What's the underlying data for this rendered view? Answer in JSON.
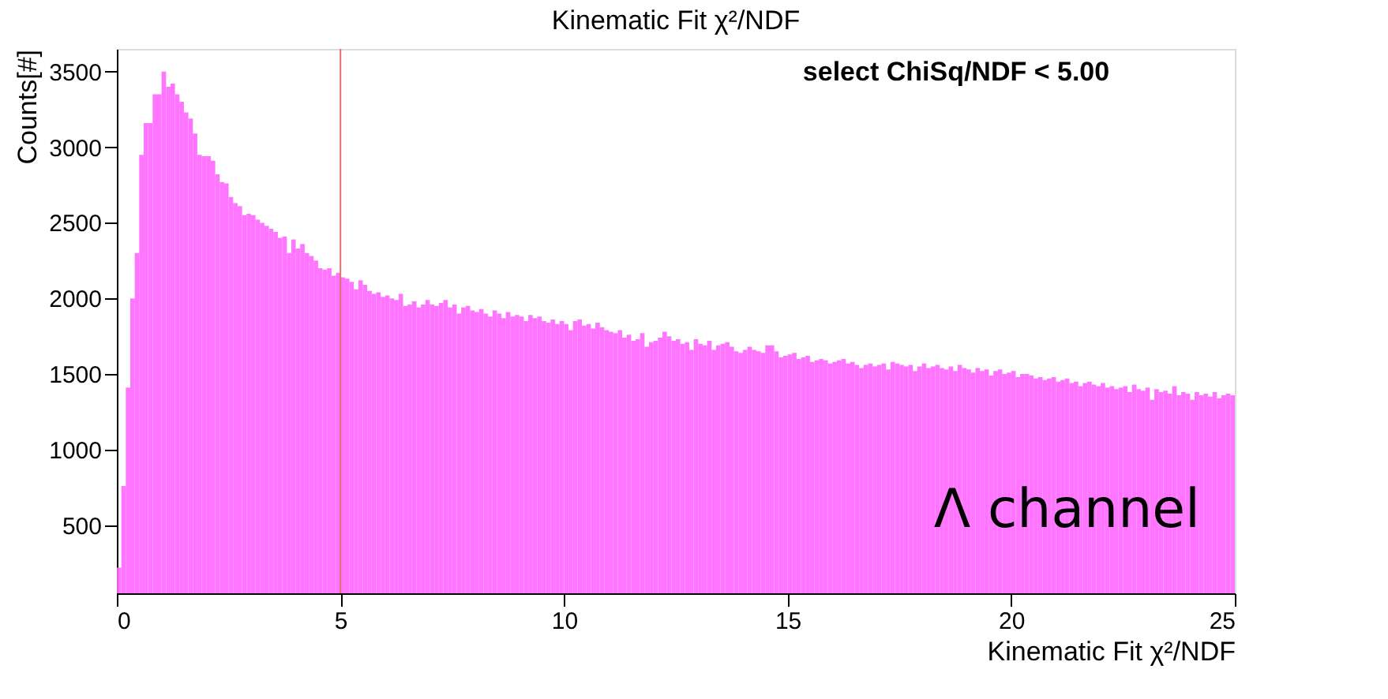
{
  "chart_data": {
    "type": "histogram",
    "title": "Kinematic Fit χ²/NDF",
    "xlabel": "Kinematic Fit χ²/NDF",
    "ylabel": "Counts[#]",
    "bins": [
      0,
      0.1,
      0.2,
      0.3,
      0.4,
      0.5,
      0.6,
      0.7,
      0.8,
      0.9,
      1,
      1.1,
      1.2,
      1.3,
      1.4,
      1.5,
      1.6,
      1.7,
      1.8,
      1.9,
      2,
      2.1,
      2.2,
      2.3,
      2.4,
      2.5,
      2.6,
      2.7,
      2.8,
      2.9,
      3,
      3.1,
      3.2,
      3.3,
      3.4,
      3.5,
      3.6,
      3.7,
      3.8,
      3.9,
      4,
      4.1,
      4.2,
      4.3,
      4.4,
      4.5,
      4.6,
      4.7,
      4.8,
      4.9,
      5,
      5.1,
      5.2,
      5.3,
      5.4,
      5.5,
      5.6,
      5.7,
      5.8,
      5.9,
      6,
      6.1,
      6.2,
      6.3,
      6.4,
      6.5,
      6.6,
      6.7,
      6.8,
      6.9,
      7,
      7.1,
      7.2,
      7.3,
      7.4,
      7.5,
      7.6,
      7.7,
      7.8,
      7.9,
      8,
      8.1,
      8.2,
      8.3,
      8.4,
      8.5,
      8.6,
      8.7,
      8.8,
      8.9,
      9,
      9.1,
      9.2,
      9.3,
      9.4,
      9.5,
      9.6,
      9.7,
      9.8,
      9.9,
      10,
      10.1,
      10.2,
      10.3,
      10.4,
      10.5,
      10.6,
      10.7,
      10.8,
      10.9,
      11,
      11.1,
      11.2,
      11.3,
      11.4,
      11.5,
      11.6,
      11.7,
      11.8,
      11.9,
      12,
      12.1,
      12.2,
      12.3,
      12.4,
      12.5,
      12.6,
      12.7,
      12.8,
      12.9,
      13,
      13.1,
      13.2,
      13.3,
      13.4,
      13.5,
      13.6,
      13.7,
      13.8,
      13.9,
      14,
      14.1,
      14.2,
      14.3,
      14.4,
      14.5,
      14.6,
      14.7,
      14.8,
      14.9,
      15,
      15.1,
      15.2,
      15.3,
      15.4,
      15.5,
      15.6,
      15.7,
      15.8,
      15.9,
      16,
      16.1,
      16.2,
      16.3,
      16.4,
      16.5,
      16.6,
      16.7,
      16.8,
      16.9,
      17,
      17.1,
      17.2,
      17.3,
      17.4,
      17.5,
      17.6,
      17.7,
      17.8,
      17.9,
      18,
      18.1,
      18.2,
      18.3,
      18.4,
      18.5,
      18.6,
      18.7,
      18.8,
      18.9,
      19,
      19.1,
      19.2,
      19.3,
      19.4,
      19.5,
      19.6,
      19.7,
      19.8,
      19.9,
      20,
      20.1,
      20.2,
      20.3,
      20.4,
      20.5,
      20.6,
      20.7,
      20.8,
      20.9,
      21,
      21.1,
      21.2,
      21.3,
      21.4,
      21.5,
      21.6,
      21.7,
      21.8,
      21.9,
      22,
      22.1,
      22.2,
      22.3,
      22.4,
      22.5,
      22.6,
      22.7,
      22.8,
      22.9,
      23,
      23.1,
      23.2,
      23.3,
      23.4,
      23.5,
      23.6,
      23.7,
      23.8,
      23.9,
      24,
      24.1,
      24.2,
      24.3,
      24.4,
      24.5,
      24.6,
      24.7,
      24.8,
      24.9,
      25
    ],
    "values": [
      220,
      760,
      1410,
      2000,
      2300,
      2950,
      3160,
      3160,
      3350,
      3350,
      3500,
      3400,
      3420,
      3350,
      3300,
      3230,
      3190,
      3090,
      2950,
      2940,
      2940,
      2910,
      2820,
      2770,
      2760,
      2670,
      2630,
      2610,
      2550,
      2560,
      2550,
      2520,
      2500,
      2480,
      2460,
      2440,
      2400,
      2410,
      2300,
      2390,
      2330,
      2360,
      2300,
      2280,
      2250,
      2200,
      2190,
      2200,
      2150,
      2170,
      2140,
      2130,
      2110,
      2060,
      2120,
      2090,
      2050,
      2030,
      2040,
      2010,
      2020,
      2000,
      1990,
      2030,
      1950,
      1960,
      1980,
      1940,
      1960,
      1990,
      1960,
      1950,
      1970,
      1990,
      1940,
      1960,
      1900,
      1940,
      1950,
      1920,
      1910,
      1930,
      1900,
      1880,
      1920,
      1900,
      1870,
      1910,
      1880,
      1890,
      1880,
      1850,
      1890,
      1870,
      1880,
      1850,
      1840,
      1860,
      1830,
      1850,
      1830,
      1790,
      1850,
      1860,
      1820,
      1830,
      1800,
      1840,
      1810,
      1790,
      1780,
      1770,
      1790,
      1740,
      1760,
      1720,
      1730,
      1770,
      1680,
      1710,
      1720,
      1740,
      1780,
      1750,
      1720,
      1730,
      1700,
      1710,
      1660,
      1730,
      1700,
      1690,
      1720,
      1660,
      1690,
      1700,
      1710,
      1680,
      1650,
      1640,
      1660,
      1680,
      1660,
      1650,
      1640,
      1690,
      1690,
      1650,
      1610,
      1620,
      1630,
      1640,
      1600,
      1610,
      1620,
      1580,
      1590,
      1600,
      1590,
      1570,
      1580,
      1590,
      1600,
      1570,
      1580,
      1560,
      1540,
      1560,
      1570,
      1550,
      1560,
      1570,
      1530,
      1580,
      1570,
      1560,
      1550,
      1560,
      1520,
      1550,
      1570,
      1540,
      1550,
      1560,
      1540,
      1530,
      1550,
      1520,
      1560,
      1540,
      1530,
      1510,
      1540,
      1520,
      1530,
      1490,
      1520,
      1530,
      1500,
      1510,
      1520,
      1480,
      1500,
      1500,
      1490,
      1470,
      1480,
      1460,
      1470,
      1480,
      1450,
      1460,
      1470,
      1440,
      1450,
      1420,
      1440,
      1450,
      1430,
      1420,
      1440,
      1410,
      1420,
      1400,
      1410,
      1420,
      1380,
      1430,
      1400,
      1390,
      1410,
      1330,
      1400,
      1380,
      1390,
      1370,
      1420,
      1360,
      1380,
      1370,
      1330,
      1380,
      1360,
      1370,
      1350,
      1380,
      1340,
      1360,
      1370,
      1360
    ],
    "color": "#ff66ff",
    "xlim": [
      0,
      25
    ],
    "xticks": [
      0,
      5,
      10,
      15,
      20,
      25
    ],
    "ylim": [
      50,
      3650
    ],
    "yticks": [
      500,
      1000,
      1500,
      2000,
      2500,
      3000,
      3500
    ],
    "grid": false,
    "ref_lines": [
      {
        "axis": "x",
        "value": 5,
        "color": "#e07070"
      }
    ],
    "annotations": [
      "select ChiSq/NDF <  5.00",
      "Λ channel"
    ]
  }
}
